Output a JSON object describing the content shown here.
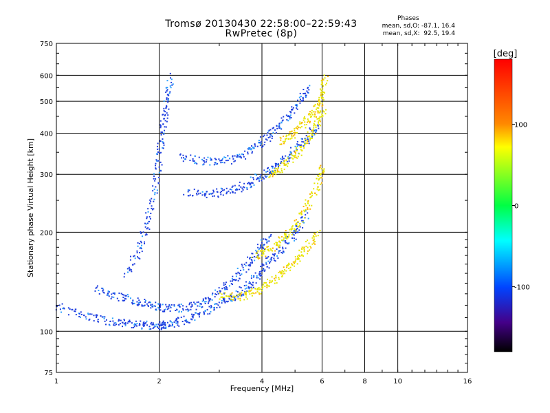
{
  "chart_data": {
    "type": "scatter",
    "title": "Tromsø 20130430 22:58:00–22:59:43",
    "subtitle": "RwPretec (8p)",
    "xlabel": "Frequency [MHz]",
    "ylabel": "Stationary phase Virtual Height [km]",
    "x_scale": "log",
    "y_scale": "log",
    "xlim": [
      1,
      16
    ],
    "ylim": [
      75,
      750
    ],
    "x_ticks": [
      1,
      2,
      4,
      6,
      8,
      10,
      16
    ],
    "y_ticks": [
      75,
      100,
      200,
      300,
      400,
      500,
      600,
      750
    ],
    "grid": true,
    "colorbar": {
      "label": "[deg]",
      "range": [
        -180,
        180
      ],
      "ticks": [
        100,
        0,
        -100
      ]
    },
    "stats": {
      "header": "Phases",
      "line_o": "mean, sd,O: -87.1, 16.4",
      "line_x": "mean, sd,X:  92.5, 19.4"
    },
    "traces": [
      {
        "name": "",
        "phase": -100,
        "points": [
          [
            1.0,
            120
          ],
          [
            1.2,
            112
          ],
          [
            1.4,
            108
          ],
          [
            1.6,
            106
          ],
          [
            1.8,
            105
          ],
          [
            2.0,
            104
          ],
          [
            2.1,
            105
          ],
          [
            2.3,
            108
          ],
          [
            2.6,
            112
          ],
          [
            3.0,
            122
          ],
          [
            3.3,
            128
          ],
          [
            3.6,
            136
          ],
          [
            3.9,
            150
          ],
          [
            4.2,
            165
          ],
          [
            4.6,
            180
          ],
          [
            5.0,
            200
          ],
          [
            5.4,
            230
          ]
        ]
      },
      {
        "name": "",
        "phase": -100,
        "points": [
          [
            1.3,
            135
          ],
          [
            1.5,
            128
          ],
          [
            1.7,
            124
          ],
          [
            1.9,
            120
          ],
          [
            2.1,
            118
          ],
          [
            2.4,
            118
          ],
          [
            2.7,
            122
          ],
          [
            3.0,
            132
          ],
          [
            3.3,
            145
          ],
          [
            3.6,
            160
          ],
          [
            3.9,
            178
          ],
          [
            4.2,
            195
          ]
        ]
      },
      {
        "name": "",
        "phase": -100,
        "points": [
          [
            1.6,
            150
          ],
          [
            1.75,
            180
          ],
          [
            1.85,
            220
          ],
          [
            1.95,
            280
          ],
          [
            2.0,
            350
          ],
          [
            2.05,
            420
          ],
          [
            2.1,
            500
          ],
          [
            2.15,
            600
          ]
        ]
      },
      {
        "name": "",
        "phase": -100,
        "points": [
          [
            2.4,
            265
          ],
          [
            2.8,
            262
          ],
          [
            3.2,
            268
          ],
          [
            3.6,
            280
          ],
          [
            4.0,
            298
          ],
          [
            4.4,
            318
          ],
          [
            4.8,
            345
          ],
          [
            5.3,
            380
          ],
          [
            5.8,
            420
          ]
        ]
      },
      {
        "name": "",
        "phase": -100,
        "points": [
          [
            2.3,
            340
          ],
          [
            2.7,
            330
          ],
          [
            3.1,
            330
          ],
          [
            3.5,
            345
          ],
          [
            3.9,
            372
          ],
          [
            4.3,
            402
          ],
          [
            4.7,
            445
          ],
          [
            5.1,
            500
          ],
          [
            5.5,
            560
          ]
        ]
      },
      {
        "name": "",
        "phase": 100,
        "points": [
          [
            3.0,
            128
          ],
          [
            3.4,
            128
          ],
          [
            3.8,
            132
          ],
          [
            4.2,
            140
          ],
          [
            4.6,
            152
          ],
          [
            5.0,
            165
          ],
          [
            5.4,
            180
          ],
          [
            5.8,
            200
          ]
        ]
      },
      {
        "name": "",
        "phase": 100,
        "points": [
          [
            3.8,
            170
          ],
          [
            4.2,
            178
          ],
          [
            4.6,
            192
          ],
          [
            5.0,
            210
          ],
          [
            5.4,
            240
          ],
          [
            5.8,
            280
          ],
          [
            6.0,
            320
          ]
        ]
      },
      {
        "name": "",
        "phase": 100,
        "points": [
          [
            4.2,
            300
          ],
          [
            4.6,
            318
          ],
          [
            5.0,
            345
          ],
          [
            5.4,
            380
          ],
          [
            5.8,
            430
          ],
          [
            6.0,
            480
          ]
        ]
      },
      {
        "name": "",
        "phase": 100,
        "points": [
          [
            4.5,
            380
          ],
          [
            4.9,
            400
          ],
          [
            5.3,
            430
          ],
          [
            5.7,
            470
          ],
          [
            6.0,
            520
          ],
          [
            6.1,
            600
          ]
        ]
      }
    ]
  }
}
